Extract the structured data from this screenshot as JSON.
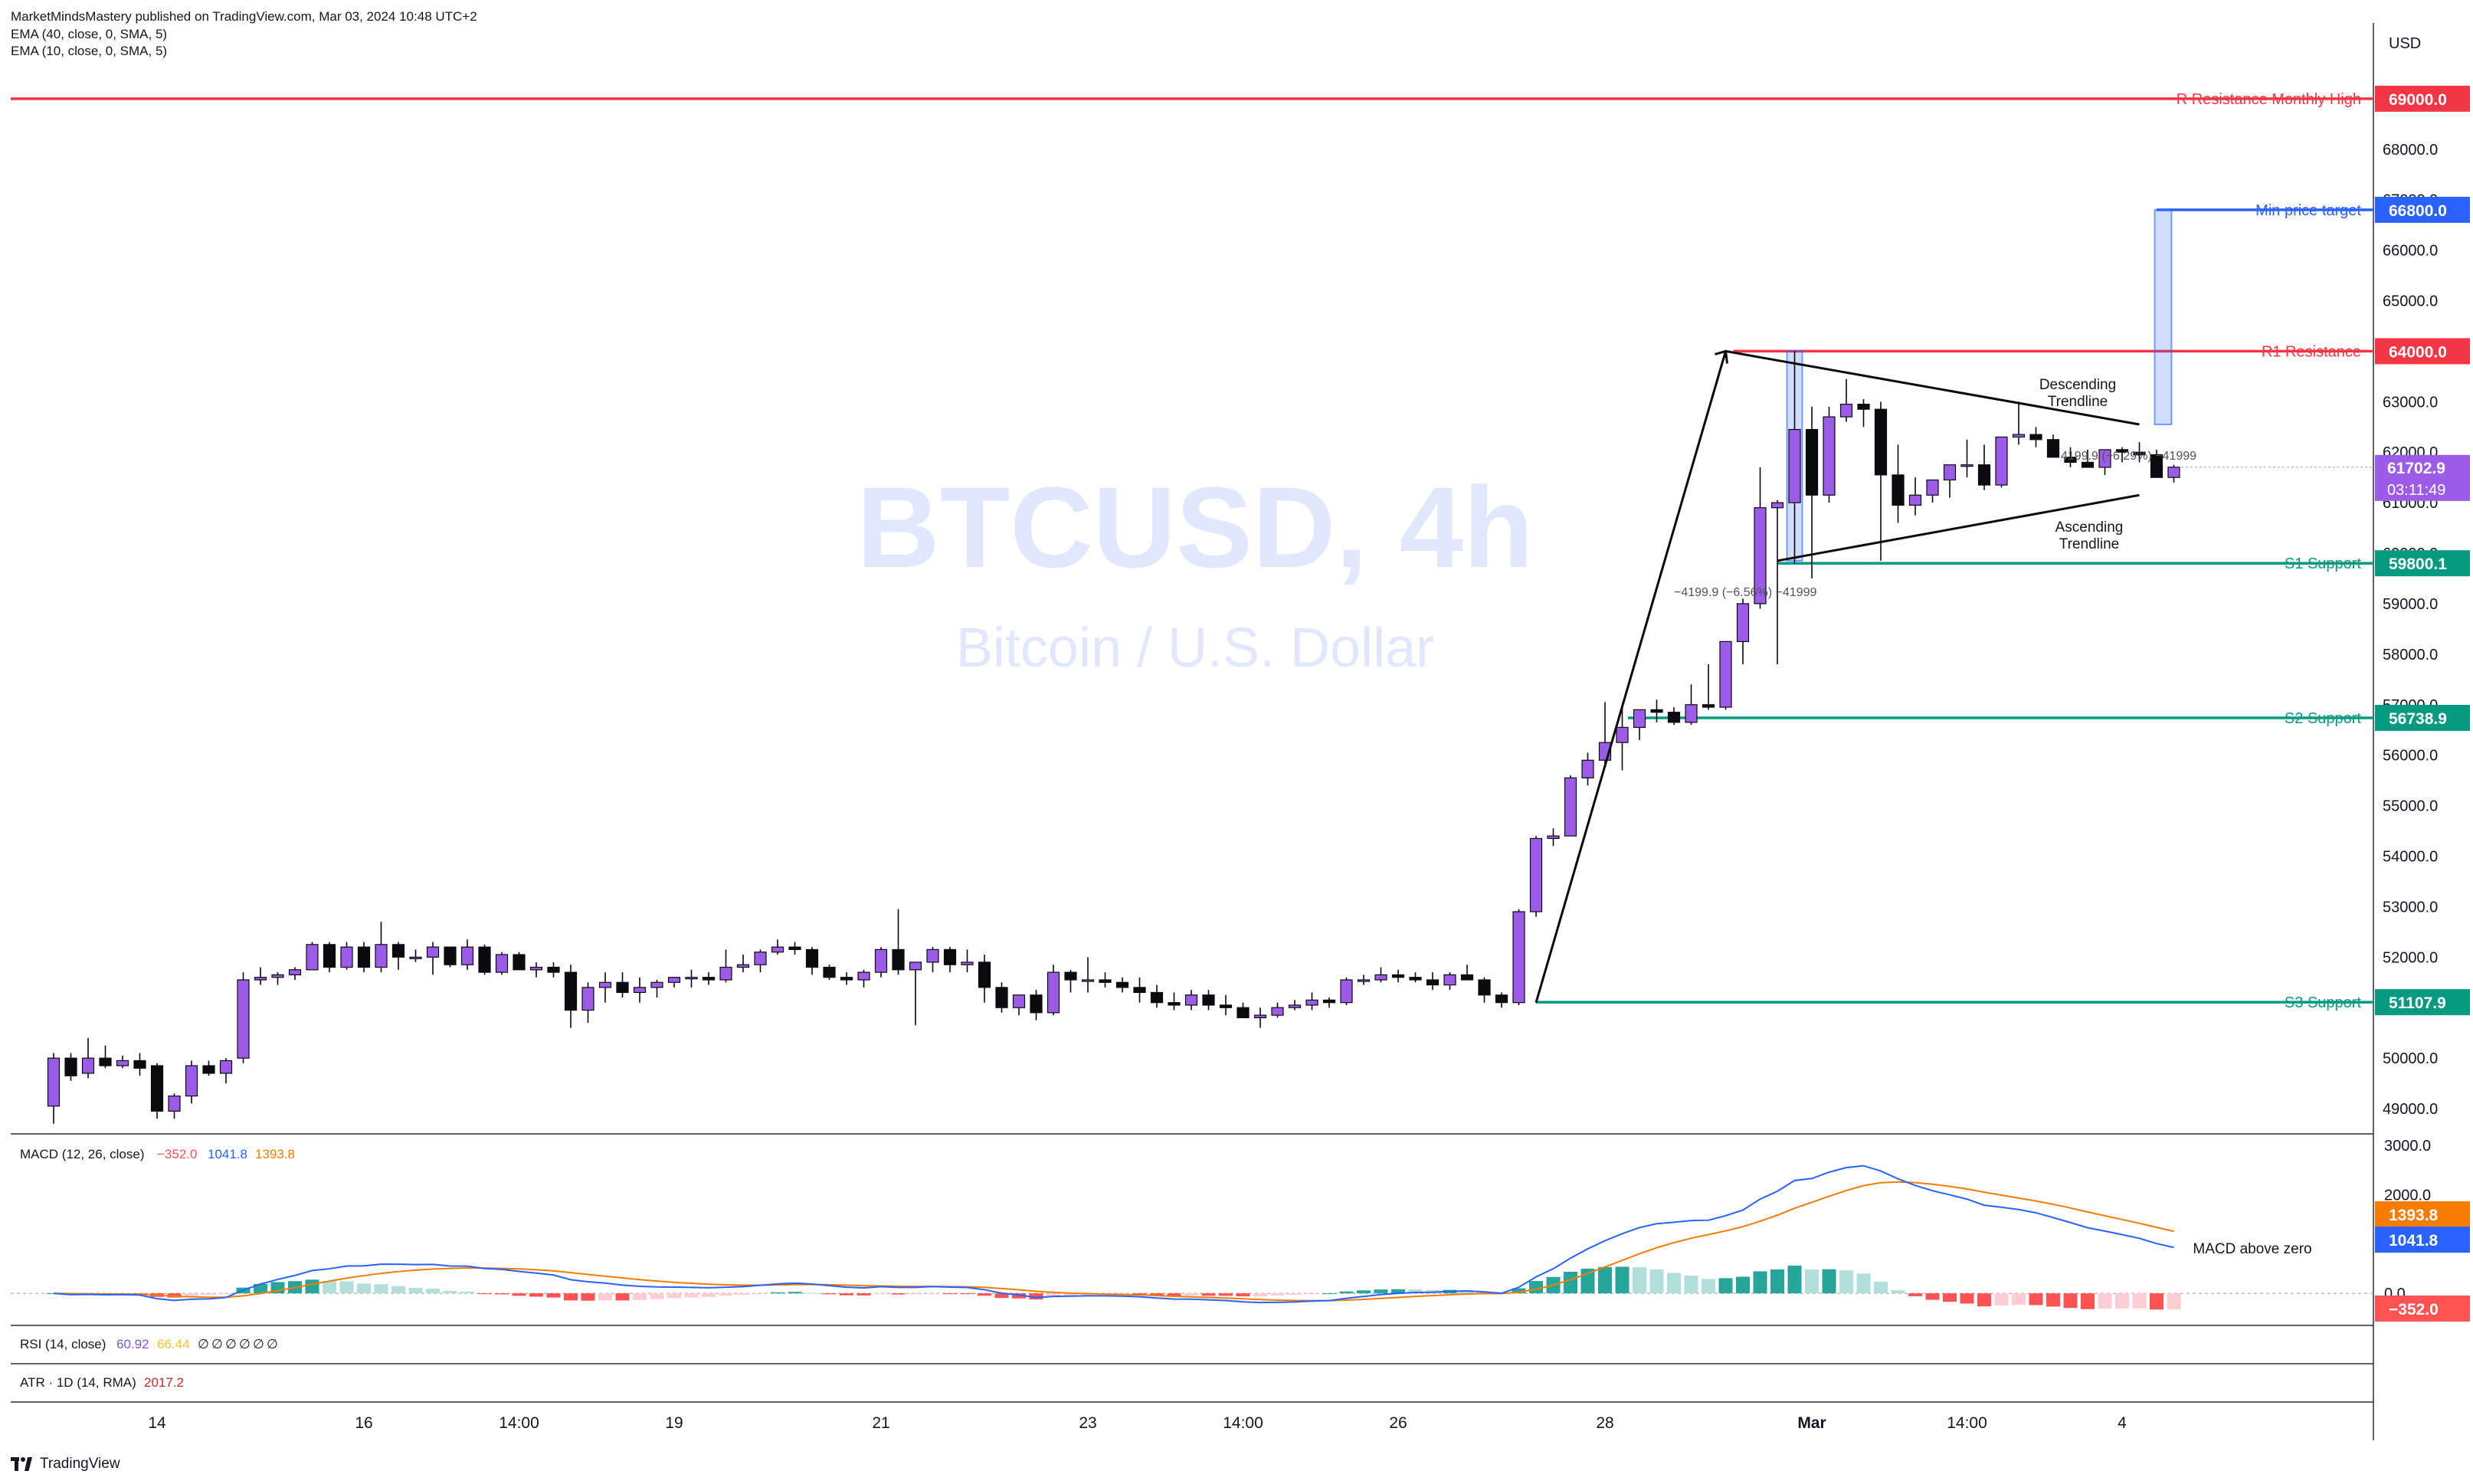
{
  "header": {
    "publisher": "MarketMindsMastery published on TradingView.com, Mar 03, 2024 10:48 UTC+2",
    "indicators": [
      "EMA (40, close, 0, SMA, 5)",
      "EMA (10, close, 0, SMA, 5)"
    ]
  },
  "footer": {
    "brand": "TradingView"
  },
  "currency_label": "USD",
  "watermark": {
    "symbol": "BTCUSD, 4h",
    "name": "Bitcoin / U.S. Dollar"
  },
  "colors": {
    "bull": "#9c5ce8",
    "bear": "#0b0b0f",
    "resistance": "#f23645",
    "support": "#089981",
    "target": "#2962ff",
    "macd_line": "#2962ff",
    "signal_line": "#f57c00",
    "hist_up_strong": "#26a69a",
    "hist_up_weak": "#b2dfdb",
    "hist_down_strong": "#ff5252",
    "hist_down_weak": "#ffcdd2",
    "watermark": "#e1e7fd"
  },
  "chart_data": [
    {
      "type": "candlestick",
      "title": "BTCUSD, 4h",
      "subtitle": "Bitcoin / U.S. Dollar",
      "ylim": [
        48500,
        70500
      ],
      "y_ticks": [
        "49000.0",
        "50000.0",
        "51000.0",
        "52000.0",
        "53000.0",
        "54000.0",
        "55000.0",
        "56000.0",
        "57000.0",
        "58000.0",
        "59000.0",
        "60000.0",
        "61000.0",
        "62000.0",
        "63000.0",
        "64000.0",
        "65000.0",
        "66000.0",
        "67000.0",
        "68000.0"
      ],
      "x_labels": [
        {
          "label": "14",
          "bar": 6
        },
        {
          "label": "16",
          "bar": 18
        },
        {
          "label": "14:00",
          "bar": 27
        },
        {
          "label": "19",
          "bar": 36
        },
        {
          "label": "21",
          "bar": 48
        },
        {
          "label": "23",
          "bar": 60
        },
        {
          "label": "14:00",
          "bar": 69
        },
        {
          "label": "26",
          "bar": 78
        },
        {
          "label": "28",
          "bar": 90
        },
        {
          "label": "Mar",
          "bar": 102
        },
        {
          "label": "14:00",
          "bar": 111
        },
        {
          "label": "4",
          "bar": 120
        }
      ],
      "candles": [
        [
          49050,
          50100,
          48700,
          50000
        ],
        [
          50000,
          50100,
          49550,
          49650
        ],
        [
          49700,
          50400,
          49600,
          50000
        ],
        [
          50000,
          50250,
          49800,
          49850
        ],
        [
          49850,
          50050,
          49800,
          49950
        ],
        [
          49950,
          50100,
          49650,
          49800
        ],
        [
          49850,
          49900,
          48800,
          48950
        ],
        [
          48950,
          49300,
          48800,
          49250
        ],
        [
          49250,
          49950,
          49100,
          49850
        ],
        [
          49850,
          49950,
          49650,
          49700
        ],
        [
          49700,
          50000,
          49500,
          49950
        ],
        [
          50000,
          51700,
          49900,
          51550
        ],
        [
          51550,
          51800,
          51450,
          51600
        ],
        [
          51600,
          51700,
          51450,
          51650
        ],
        [
          51650,
          51800,
          51550,
          51750
        ],
        [
          51750,
          52300,
          51750,
          52250
        ],
        [
          52250,
          52300,
          51700,
          51800
        ],
        [
          51800,
          52300,
          51750,
          52200
        ],
        [
          52200,
          52300,
          51700,
          51800
        ],
        [
          51800,
          52700,
          51700,
          52250
        ],
        [
          52250,
          52300,
          51750,
          52000
        ],
        [
          52000,
          52150,
          51900,
          52000
        ],
        [
          52000,
          52300,
          51650,
          52200
        ],
        [
          52200,
          52200,
          51800,
          51850
        ],
        [
          51850,
          52350,
          51750,
          52200
        ],
        [
          52200,
          52250,
          51650,
          51700
        ],
        [
          51700,
          52100,
          51650,
          52050
        ],
        [
          52050,
          52100,
          51750,
          51750
        ],
        [
          51750,
          51900,
          51600,
          51800
        ],
        [
          51800,
          51900,
          51600,
          51700
        ],
        [
          51700,
          51850,
          50600,
          50950
        ],
        [
          50950,
          51500,
          50700,
          51400
        ],
        [
          51400,
          51700,
          51100,
          51500
        ],
        [
          51500,
          51700,
          51200,
          51300
        ],
        [
          51300,
          51600,
          51100,
          51400
        ],
        [
          51400,
          51550,
          51200,
          51500
        ],
        [
          51500,
          51600,
          51400,
          51600
        ],
        [
          51600,
          51750,
          51400,
          51600
        ],
        [
          51600,
          51700,
          51450,
          51550
        ],
        [
          51550,
          52150,
          51500,
          51800
        ],
        [
          51800,
          52050,
          51700,
          51850
        ],
        [
          51850,
          52150,
          51700,
          52100
        ],
        [
          52100,
          52350,
          52050,
          52200
        ],
        [
          52200,
          52300,
          52050,
          52150
        ],
        [
          52150,
          52200,
          51650,
          51800
        ],
        [
          51800,
          51850,
          51550,
          51600
        ],
        [
          51600,
          51700,
          51450,
          51550
        ],
        [
          51550,
          51750,
          51400,
          51700
        ],
        [
          51700,
          52200,
          51600,
          52150
        ],
        [
          52150,
          52950,
          51650,
          51750
        ],
        [
          51750,
          51900,
          50650,
          51900
        ],
        [
          51900,
          52200,
          51700,
          52150
        ],
        [
          52150,
          52200,
          51700,
          51850
        ],
        [
          51850,
          52150,
          51700,
          51900
        ],
        [
          51900,
          52050,
          51100,
          51400
        ],
        [
          51400,
          51500,
          50900,
          51000
        ],
        [
          51000,
          51250,
          50850,
          51250
        ],
        [
          51250,
          51350,
          50750,
          50900
        ],
        [
          50900,
          51850,
          50850,
          51700
        ],
        [
          51700,
          51750,
          51300,
          51550
        ],
        [
          51550,
          52000,
          51300,
          51550
        ],
        [
          51550,
          51700,
          51400,
          51500
        ],
        [
          51500,
          51600,
          51300,
          51400
        ],
        [
          51400,
          51600,
          51100,
          51300
        ],
        [
          51300,
          51450,
          51000,
          51100
        ],
        [
          51100,
          51300,
          50950,
          51050
        ],
        [
          51050,
          51350,
          50950,
          51250
        ],
        [
          51250,
          51350,
          50950,
          51050
        ],
        [
          51050,
          51250,
          50850,
          51000
        ],
        [
          51000,
          51100,
          50800,
          50800
        ],
        [
          50800,
          51000,
          50600,
          50850
        ],
        [
          50850,
          51100,
          50800,
          51000
        ],
        [
          51000,
          51150,
          50950,
          51050
        ],
        [
          51050,
          51300,
          50950,
          51150
        ],
        [
          51150,
          51200,
          51000,
          51100
        ],
        [
          51100,
          51600,
          51050,
          51550
        ],
        [
          51550,
          51650,
          51450,
          51550
        ],
        [
          51550,
          51800,
          51500,
          51650
        ],
        [
          51650,
          51750,
          51500,
          51600
        ],
        [
          51600,
          51700,
          51500,
          51550
        ],
        [
          51550,
          51700,
          51350,
          51450
        ],
        [
          51450,
          51700,
          51350,
          51650
        ],
        [
          51650,
          51850,
          51550,
          51550
        ],
        [
          51550,
          51600,
          51100,
          51250
        ],
        [
          51250,
          51300,
          51000,
          51100
        ],
        [
          51100,
          52950,
          51050,
          52900
        ],
        [
          52900,
          54400,
          52800,
          54350
        ],
        [
          54350,
          54550,
          54200,
          54400
        ],
        [
          54400,
          55600,
          54400,
          55550
        ],
        [
          55550,
          56050,
          55400,
          55900
        ],
        [
          55900,
          57050,
          55800,
          56250
        ],
        [
          56250,
          57000,
          55700,
          56550
        ],
        [
          56550,
          56900,
          56300,
          56900
        ],
        [
          56900,
          57100,
          56650,
          56850
        ],
        [
          56850,
          56950,
          56600,
          56650
        ],
        [
          56650,
          57400,
          56600,
          57000
        ],
        [
          57000,
          57800,
          56900,
          56950
        ],
        [
          56950,
          58200,
          56900,
          58250
        ],
        [
          58250,
          59100,
          57800,
          59000
        ],
        [
          59000,
          61700,
          58900,
          60900
        ],
        [
          60900,
          61050,
          57800,
          61000
        ],
        [
          61000,
          64000,
          59800,
          62450
        ],
        [
          62450,
          62900,
          59500,
          61150
        ],
        [
          61150,
          62900,
          61000,
          62700
        ],
        [
          62700,
          63450,
          62600,
          62950
        ],
        [
          62950,
          63050,
          62500,
          62850
        ],
        [
          62850,
          63000,
          59850,
          61550
        ],
        [
          61550,
          62150,
          60600,
          60950
        ],
        [
          60950,
          61500,
          60750,
          61150
        ],
        [
          61150,
          61450,
          61000,
          61450
        ],
        [
          61450,
          61700,
          61100,
          61750
        ],
        [
          61750,
          62250,
          61500,
          61750
        ],
        [
          61750,
          62150,
          61250,
          61350
        ],
        [
          61350,
          62250,
          61300,
          62300
        ],
        [
          62300,
          63000,
          62150,
          62350
        ],
        [
          62350,
          62500,
          62100,
          62250
        ],
        [
          62250,
          62350,
          62000,
          61900
        ],
        [
          61900,
          62100,
          61700,
          61800
        ],
        [
          61800,
          62050,
          61700,
          61700
        ],
        [
          61700,
          61950,
          61550,
          62050
        ],
        [
          62050,
          62100,
          61800,
          62000
        ],
        [
          62000,
          62200,
          61800,
          61950
        ],
        [
          61950,
          62050,
          61550,
          61500
        ],
        [
          61500,
          61750,
          61400,
          61703
        ]
      ],
      "levels": [
        {
          "name": "R Resistance Monthly High",
          "value": 69000.0,
          "label": "69000.0",
          "kind": "resistance"
        },
        {
          "name": "Min price target",
          "value": 66800.0,
          "label": "66800.0",
          "kind": "target"
        },
        {
          "name": "R1 Resistance",
          "value": 64000.0,
          "label": "64000.0",
          "kind": "resistance"
        },
        {
          "name": "S1 Support",
          "value": 59800.1,
          "label": "59800.1",
          "kind": "support"
        },
        {
          "name": "S2 Support",
          "value": 56738.9,
          "label": "56738.9",
          "kind": "support"
        },
        {
          "name": "S3 Support",
          "value": 51107.9,
          "label": "51107.9",
          "kind": "support"
        }
      ],
      "current_price": {
        "label": "61702.9",
        "countdown": "03:11:49",
        "value": 61702.9
      },
      "annotations": {
        "descending": [
          "Descending",
          "Trendline"
        ],
        "ascending": [
          "Ascending",
          "Trendline"
        ],
        "measure_top": "4199.9 (−6.29%) −41999",
        "measure_bottom": "−4199.9 (−6.56%) −41999"
      },
      "drawings": {
        "flagpole": [
          [
            86,
            51100
          ],
          [
            97,
            64000
          ]
        ],
        "descending": [
          [
            97,
            64000
          ],
          [
            121,
            62550
          ]
        ],
        "ascending": [
          [
            100,
            59850
          ],
          [
            121,
            61150
          ]
        ],
        "target_box": {
          "from": 121,
          "to": 122,
          "low": 62550,
          "high": 66800
        }
      }
    },
    {
      "type": "line",
      "title": "MACD (12, 26, close)",
      "legend_values": [
        "−352.0",
        "1041.8",
        "1393.8"
      ],
      "ylim": [
        -650,
        3200
      ],
      "y_ticks": [
        "3000.0",
        "2000.0",
        "1000.0",
        "0.0"
      ],
      "annotation": "MACD above zero",
      "value_labels": {
        "signal": "1393.8",
        "macd": "1041.8",
        "hist": "−352.0"
      }
    },
    {
      "type": "line",
      "title": "RSI (14, close)",
      "legend_values": [
        "60.92",
        "66.44",
        "∅",
        "∅",
        "∅",
        "∅",
        "∅",
        "∅"
      ]
    },
    {
      "type": "line",
      "title": "ATR · 1D (14, RMA)",
      "legend_values": [
        "2017.2"
      ]
    }
  ]
}
